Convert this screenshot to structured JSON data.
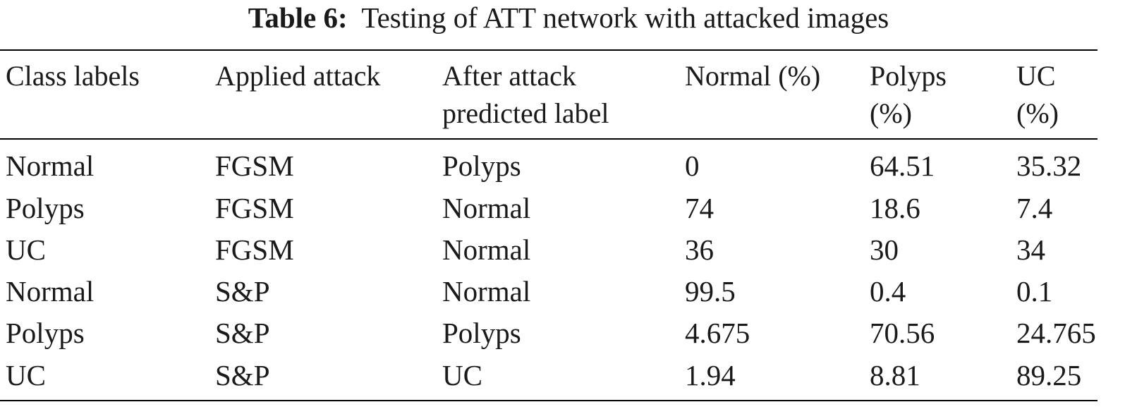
{
  "caption": {
    "label": "Table 6:",
    "text": "Testing of ATT network with attacked images"
  },
  "table": {
    "headers": [
      [
        "Class labels"
      ],
      [
        "Applied attack"
      ],
      [
        "After attack",
        "predicted label"
      ],
      [
        "Normal (%)"
      ],
      [
        "Polyps",
        "(%)"
      ],
      [
        "UC",
        "(%)"
      ]
    ],
    "rows": [
      [
        "Normal",
        "FGSM",
        "Polyps",
        "0",
        "64.51",
        "35.32"
      ],
      [
        "Polyps",
        "FGSM",
        "Normal",
        "74",
        "18.6",
        "7.4"
      ],
      [
        "UC",
        "FGSM",
        "Normal",
        "36",
        "30",
        "34"
      ],
      [
        "Normal",
        "S&P",
        "Normal",
        "99.5",
        "0.4",
        "0.1"
      ],
      [
        "Polyps",
        "S&P",
        "Polyps",
        "4.675",
        "70.56",
        "24.765"
      ],
      [
        "UC",
        "S&P",
        "UC",
        "1.94",
        "8.81",
        "89.25"
      ]
    ]
  }
}
